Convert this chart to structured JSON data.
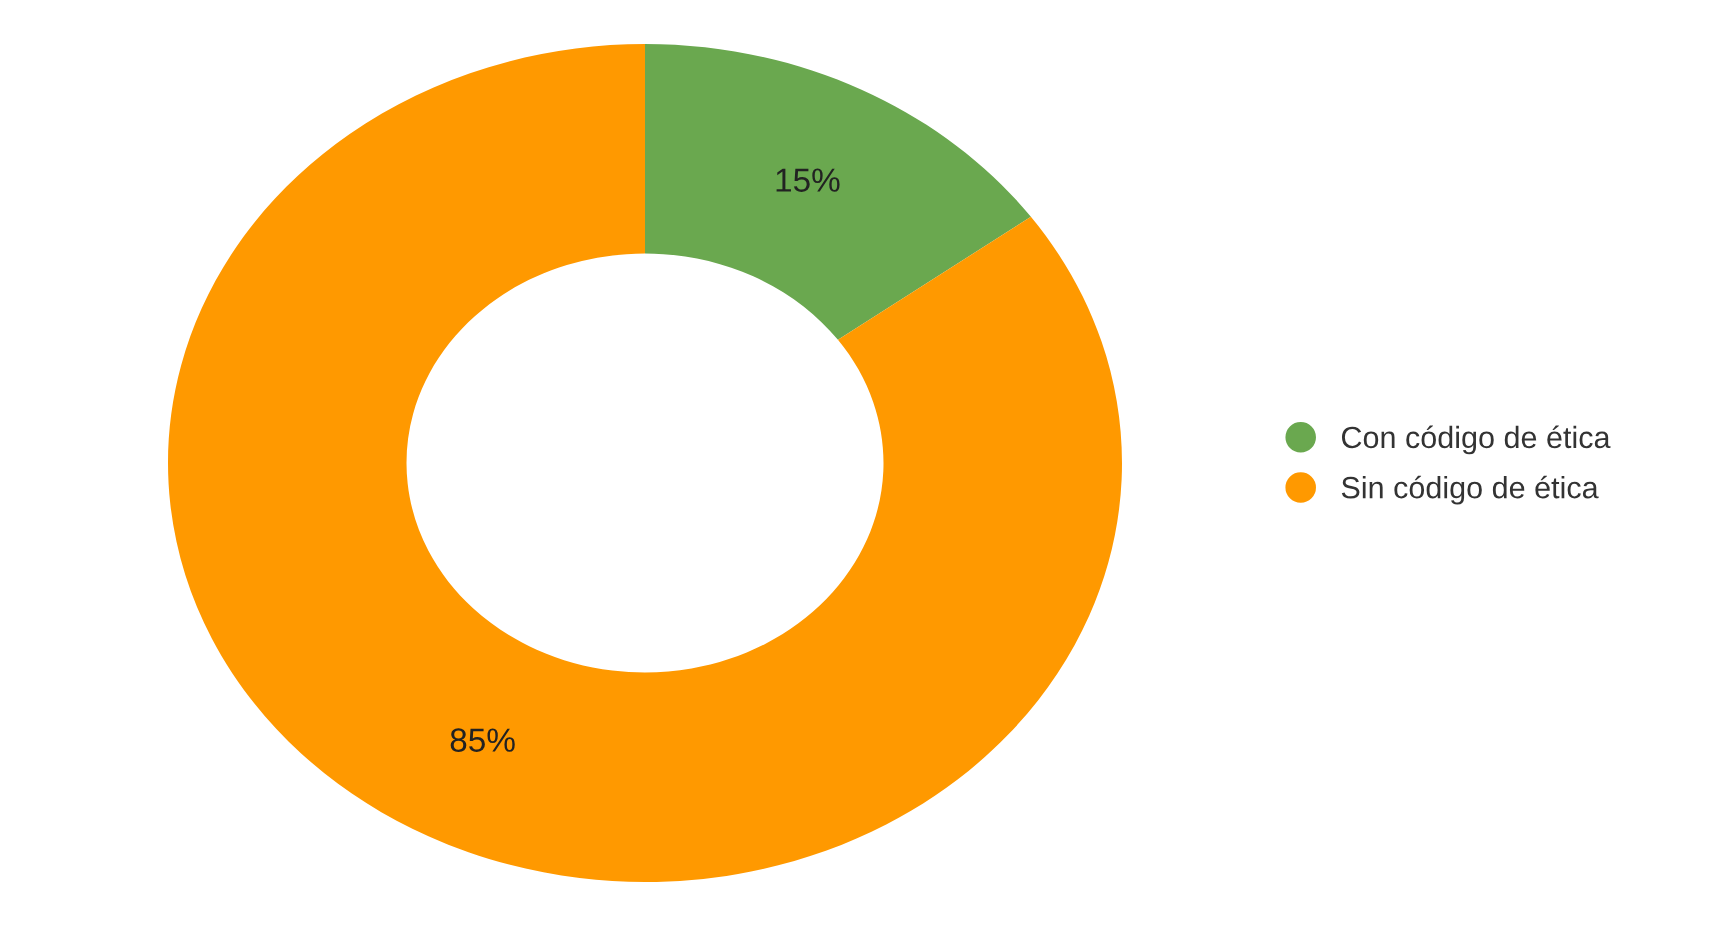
{
  "chart_data": {
    "type": "donut",
    "categories": [
      "Con código de ética",
      "Sin código de ética"
    ],
    "values": [
      15,
      85
    ],
    "colors": [
      "#6aa84f",
      "#ff9900"
    ],
    "value_labels": [
      "15%",
      "85%"
    ],
    "legend": "right"
  }
}
